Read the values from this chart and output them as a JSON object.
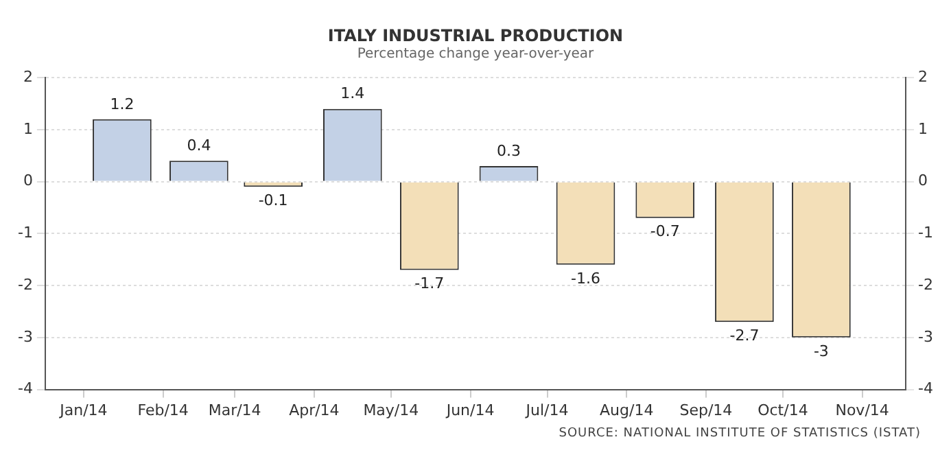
{
  "chart_data": {
    "type": "bar",
    "title": "ITALY INDUSTRIAL PRODUCTION",
    "subtitle": "Percentage change year-over-year",
    "x": [
      "2014-01-16",
      "2014-02-15",
      "2014-03-16",
      "2014-04-16",
      "2014-05-16",
      "2014-06-16",
      "2014-07-16",
      "2014-08-16",
      "2014-09-16",
      "2014-10-16"
    ],
    "values": [
      1.2,
      0.4,
      -0.1,
      1.4,
      -1.7,
      0.3,
      -1.6,
      -0.7,
      -2.7,
      -3
    ],
    "colors": [
      "#c3d1e6",
      "#c3d1e6",
      "#f3dfb8",
      "#c3d1e6",
      "#f3dfb8",
      "#c3d1e6",
      "#f3dfb8",
      "#f3dfb8",
      "#f3dfb8",
      "#f3dfb8"
    ],
    "data_labels": true,
    "xlim": [
      "2013-12-17",
      "2014-11-18"
    ],
    "xticks": [
      {
        "value": "2014-01-01",
        "label": "Jan/14"
      },
      {
        "value": "2014-02-01",
        "label": "Feb/14"
      },
      {
        "value": "2014-03-01",
        "label": "Mar/14"
      },
      {
        "value": "2014-04-01",
        "label": "Apr/14"
      },
      {
        "value": "2014-05-01",
        "label": "May/14"
      },
      {
        "value": "2014-06-01",
        "label": "Jun/14"
      },
      {
        "value": "2014-07-01",
        "label": "Jul/14"
      },
      {
        "value": "2014-08-01",
        "label": "Aug/14"
      },
      {
        "value": "2014-09-01",
        "label": "Sep/14"
      },
      {
        "value": "2014-10-01",
        "label": "Oct/14"
      },
      {
        "value": "2014-11-01",
        "label": "Nov/14"
      }
    ],
    "ylim": [
      -4,
      2
    ],
    "yticks": [
      -4,
      -3,
      -2,
      -1,
      0,
      1,
      2
    ],
    "y2lim": [
      -4,
      2
    ],
    "y2ticks": [
      -4,
      -3,
      -2,
      -1,
      0,
      1,
      2
    ],
    "grid": "y",
    "legend": false,
    "annotations": [
      "SOURCE: NATIONAL INSTITUTE OF STATISTICS (ISTAT)"
    ]
  }
}
